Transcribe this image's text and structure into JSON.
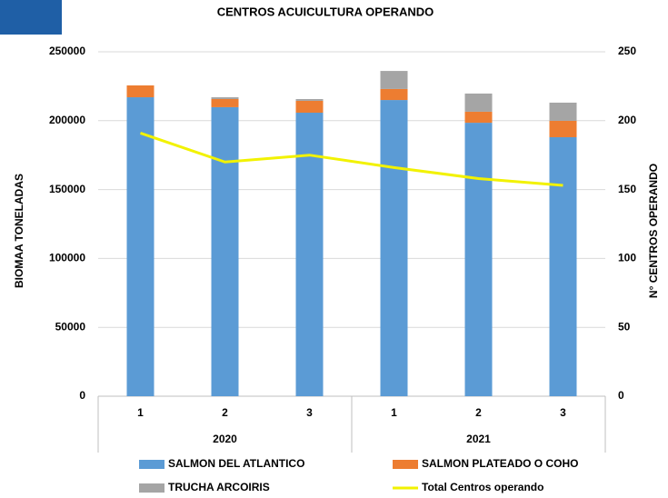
{
  "chart_data": {
    "type": "bar",
    "stacked": true,
    "title": "CENTROS ACUICULTURA OPERANDO",
    "y_label": "BIOMAA TONELADAS",
    "y2_label": "N° CENTROS OPERANDO",
    "categories": [
      "1",
      "2",
      "3",
      "1",
      "2",
      "3"
    ],
    "groups": [
      "2020",
      "2021"
    ],
    "series": [
      {
        "name": "SALMON DEL ATLANTICO",
        "color": "#5b9bd5",
        "type": "bar",
        "values": [
          217000,
          209800,
          205800,
          215000,
          198500,
          188000
        ]
      },
      {
        "name": "SALMON PLATEADO O COHO",
        "color": "#ed7d31",
        "type": "bar",
        "values": [
          8600,
          5900,
          8600,
          8000,
          8000,
          11900
        ]
      },
      {
        "name": "TRUCHA ARCOIRIS",
        "color": "#a5a5a5",
        "type": "bar",
        "values": [
          0,
          1300,
          1300,
          13100,
          13200,
          13200
        ]
      },
      {
        "name": "Total Centros operando",
        "color": "#f2f200",
        "type": "line",
        "axis": "y2",
        "values": [
          191,
          170,
          175,
          166,
          158,
          153
        ]
      }
    ],
    "ylim": [
      0,
      250000
    ],
    "yticks": [
      0,
      50000,
      100000,
      150000,
      200000,
      250000
    ],
    "y2lim": [
      0,
      250
    ],
    "y2ticks": [
      0,
      50,
      100,
      150,
      200,
      250
    ],
    "grid": true
  }
}
